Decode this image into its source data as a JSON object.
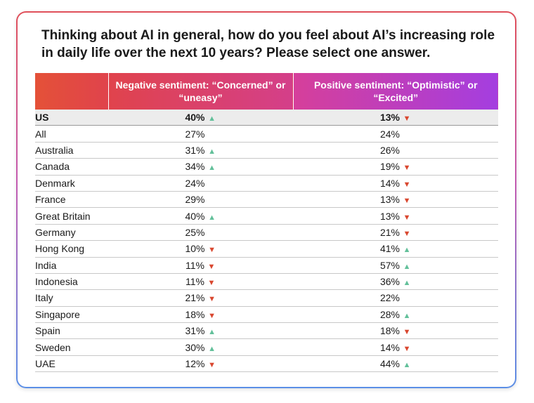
{
  "chart_data": {
    "type": "table",
    "title": "Thinking about AI in general, how do you feel about AI’s increasing role in daily life over the next 10 years? Please select one answer.",
    "columns": [
      "",
      "Negative sentiment: “Concerned” or “uneasy”",
      "Positive sentiment: “Optimistic” or “Excited”"
    ],
    "rows": [
      {
        "country": "US",
        "negative": "40%",
        "negative_trend": "up",
        "positive": "13%",
        "positive_trend": "down",
        "highlight": true
      },
      {
        "country": "All",
        "negative": "27%",
        "negative_trend": "",
        "positive": "24%",
        "positive_trend": ""
      },
      {
        "country": "Australia",
        "negative": "31%",
        "negative_trend": "up",
        "positive": "26%",
        "positive_trend": ""
      },
      {
        "country": "Canada",
        "negative": "34%",
        "negative_trend": "up",
        "positive": "19%",
        "positive_trend": "down"
      },
      {
        "country": "Denmark",
        "negative": "24%",
        "negative_trend": "",
        "positive": "14%",
        "positive_trend": "down"
      },
      {
        "country": "France",
        "negative": "29%",
        "negative_trend": "",
        "positive": "13%",
        "positive_trend": "down"
      },
      {
        "country": "Great Britain",
        "negative": "40%",
        "negative_trend": "up",
        "positive": "13%",
        "positive_trend": "down"
      },
      {
        "country": "Germany",
        "negative": "25%",
        "negative_trend": "",
        "positive": "21%",
        "positive_trend": "down"
      },
      {
        "country": "Hong Kong",
        "negative": "10%",
        "negative_trend": "down",
        "positive": "41%",
        "positive_trend": "up"
      },
      {
        "country": "India",
        "negative": "11%",
        "negative_trend": "down",
        "positive": "57%",
        "positive_trend": "up"
      },
      {
        "country": "Indonesia",
        "negative": "11%",
        "negative_trend": "down",
        "positive": "36%",
        "positive_trend": "up"
      },
      {
        "country": "Italy",
        "negative": "21%",
        "negative_trend": "down",
        "positive": "22%",
        "positive_trend": ""
      },
      {
        "country": "Singapore",
        "negative": "18%",
        "negative_trend": "down",
        "positive": "28%",
        "positive_trend": "up"
      },
      {
        "country": "Spain",
        "negative": "31%",
        "negative_trend": "up",
        "positive": "18%",
        "positive_trend": "down"
      },
      {
        "country": "Sweden",
        "negative": "30%",
        "negative_trend": "up",
        "positive": "14%",
        "positive_trend": "down"
      },
      {
        "country": "UAE",
        "negative": "12%",
        "negative_trend": "down",
        "positive": "44%",
        "positive_trend": "up"
      }
    ]
  },
  "colors": {
    "arrow_up": "#62c09a",
    "arrow_down": "#d9472f",
    "header_start": "#e45138",
    "header_end": "#a43ee0"
  },
  "icons": {
    "up": "▲",
    "down": "▼"
  }
}
